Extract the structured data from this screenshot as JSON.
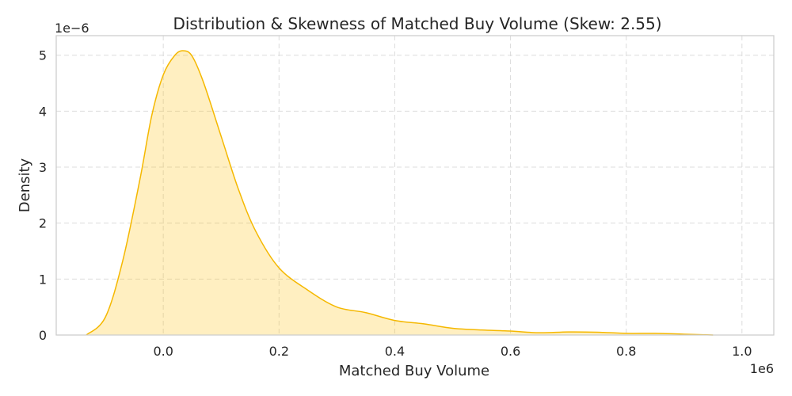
{
  "chart_data": {
    "type": "area",
    "title": "Distribution & Skewness of Matched Buy Volume (Skew: 2.55)",
    "xlabel": "Matched Buy Volume",
    "ylabel": "Density",
    "x_offset_text": "1e6",
    "y_offset_text": "1e−6",
    "xlim": [
      -0.185,
      1.055
    ],
    "ylim": [
      0,
      5.35
    ],
    "x_ticks": [
      0.0,
      0.2,
      0.4,
      0.6,
      0.8,
      1.0
    ],
    "x_tick_labels": [
      "0.0",
      "0.2",
      "0.4",
      "0.6",
      "0.8",
      "1.0"
    ],
    "y_ticks": [
      0,
      1,
      2,
      3,
      4,
      5
    ],
    "y_tick_labels": [
      "0",
      "1",
      "2",
      "3",
      "4",
      "5"
    ],
    "grid": true,
    "colors": {
      "line": "#f5b800",
      "fill": "#ffc107"
    },
    "series": [
      {
        "x": [
          -0.133,
          -0.1,
          -0.07,
          -0.04,
          -0.02,
          0.0,
          0.02,
          0.035,
          0.05,
          0.07,
          0.1,
          0.13,
          0.16,
          0.2,
          0.25,
          0.3,
          0.35,
          0.4,
          0.45,
          0.5,
          0.55,
          0.6,
          0.65,
          0.7,
          0.75,
          0.8,
          0.85,
          0.9,
          0.95
        ],
        "y": [
          0.0,
          0.32,
          1.33,
          2.8,
          3.92,
          4.65,
          5.0,
          5.08,
          4.98,
          4.5,
          3.55,
          2.6,
          1.85,
          1.2,
          0.8,
          0.5,
          0.4,
          0.26,
          0.2,
          0.12,
          0.09,
          0.07,
          0.04,
          0.055,
          0.05,
          0.03,
          0.03,
          0.015,
          0.0
        ]
      }
    ]
  }
}
